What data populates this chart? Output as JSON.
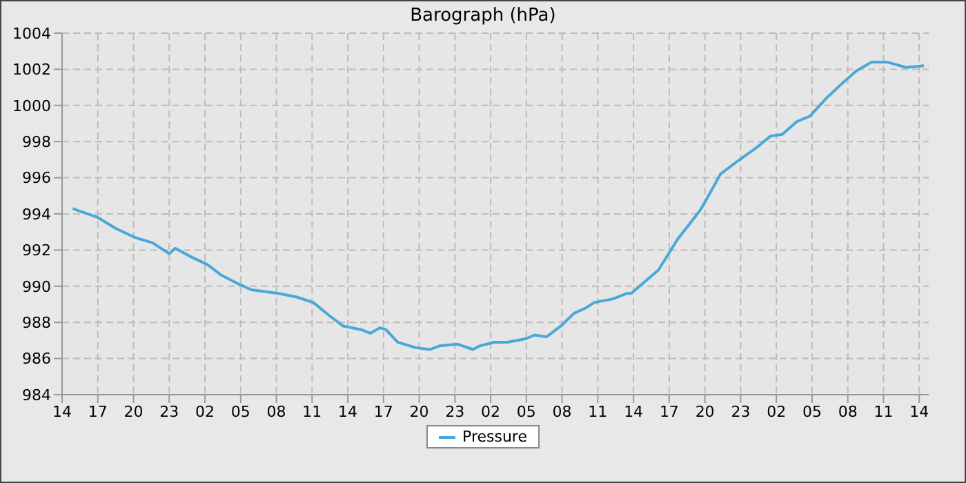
{
  "chart_data": {
    "type": "line",
    "title": "Barograph (hPa)",
    "x": [
      "--01-01T14:54",
      "--01-01T15:18",
      "--01-01T17:00",
      "--01-01T18:30",
      "--01-01T20:06",
      "--01-01T21:36",
      "--01-01T23:00",
      "--01-01T23:30",
      "--01-02T00:54",
      "--01-02T02:12",
      "--01-02T03:24",
      "--01-02T04:54",
      "--01-02T05:54",
      "--01-02T08:12",
      "--01-02T09:42",
      "--01-02T11:06",
      "--01-02T12:24",
      "--01-02T13:36",
      "--01-02T15:06",
      "--01-02T15:54",
      "--01-02T16:42",
      "--01-02T17:12",
      "--01-02T18:12",
      "--01-02T19:42",
      "--01-02T20:54",
      "--01-02T21:42",
      "--01-02T23:12",
      "--01-03T00:30",
      "--01-03T01:06",
      "--01-03T02:18",
      "--01-03T03:24",
      "--01-03T05:00",
      "--01-03T05:42",
      "--01-03T06:42",
      "--01-03T07:54",
      "--01-03T09:00",
      "--01-03T10:00",
      "--01-03T10:42",
      "--01-03T12:18",
      "--01-03T13:24",
      "--01-03T13:48",
      "--01-03T16:06",
      "--01-03T17:42",
      "--01-03T19:36",
      "--01-03T20:18",
      "--01-03T21:18",
      "--01-03T22:42",
      "--01-04T00:12",
      "--01-04T01:30",
      "--01-04T02:30",
      "--01-04T03:42",
      "--01-04T04:48",
      "--01-04T06:12",
      "--01-04T07:30",
      "--01-04T08:42",
      "--01-04T10:00",
      "--01-04T11:18",
      "--01-04T12:54",
      "--01-04T14:24"
    ],
    "series": [
      {
        "name": "Pressure",
        "color": "#4aa8d8",
        "values": [
          994.3,
          994.2,
          993.8,
          993.2,
          992.7,
          992.4,
          991.8,
          992.1,
          991.6,
          991.2,
          990.6,
          990.1,
          989.8,
          989.6,
          989.4,
          989.1,
          988.4,
          987.8,
          987.6,
          987.4,
          987.7,
          987.6,
          986.9,
          986.6,
          986.5,
          986.7,
          986.8,
          986.5,
          986.7,
          986.9,
          986.9,
          987.1,
          987.3,
          987.2,
          987.8,
          988.5,
          988.8,
          989.1,
          989.3,
          989.6,
          989.6,
          990.9,
          992.6,
          994.2,
          995,
          996.2,
          996.9,
          997.6,
          998.3,
          998.4,
          999.1,
          999.4,
          1000.4,
          1001.2,
          1001.9,
          1002.4,
          1002.4,
          1002.1,
          1002.2
        ]
      }
    ],
    "xlim": [
      "--01-01T14:00",
      "--01-04T14:48"
    ],
    "xticks": [
      {
        "value": "--01-01T14:00",
        "label": "14"
      },
      {
        "value": "--01-01T17:00",
        "label": "17"
      },
      {
        "value": "--01-01T20:00",
        "label": "20"
      },
      {
        "value": "--01-01T23:00",
        "label": "23"
      },
      {
        "value": "--01-02T02:00",
        "label": "02"
      },
      {
        "value": "--01-02T05:00",
        "label": "05"
      },
      {
        "value": "--01-02T08:00",
        "label": "08"
      },
      {
        "value": "--01-02T11:00",
        "label": "11"
      },
      {
        "value": "--01-02T14:00",
        "label": "14"
      },
      {
        "value": "--01-02T17:00",
        "label": "17"
      },
      {
        "value": "--01-02T20:00",
        "label": "20"
      },
      {
        "value": "--01-02T23:00",
        "label": "23"
      },
      {
        "value": "--01-03T02:00",
        "label": "02"
      },
      {
        "value": "--01-03T05:00",
        "label": "05"
      },
      {
        "value": "--01-03T08:00",
        "label": "08"
      },
      {
        "value": "--01-03T11:00",
        "label": "11"
      },
      {
        "value": "--01-03T14:00",
        "label": "14"
      },
      {
        "value": "--01-03T17:00",
        "label": "17"
      },
      {
        "value": "--01-03T20:00",
        "label": "20"
      },
      {
        "value": "--01-03T23:00",
        "label": "23"
      },
      {
        "value": "--01-04T02:00",
        "label": "02"
      },
      {
        "value": "--01-04T05:00",
        "label": "05"
      },
      {
        "value": "--01-04T08:00",
        "label": "08"
      },
      {
        "value": "--01-04T11:00",
        "label": "11"
      },
      {
        "value": "--01-04T14:00",
        "label": "14"
      }
    ],
    "ylim": [
      984,
      1004
    ],
    "yticks": [
      984,
      986,
      988,
      990,
      992,
      994,
      996,
      998,
      1000,
      1002,
      1004
    ],
    "grid": true,
    "legend": "bottom",
    "marker": "none",
    "line_style": "solid"
  }
}
